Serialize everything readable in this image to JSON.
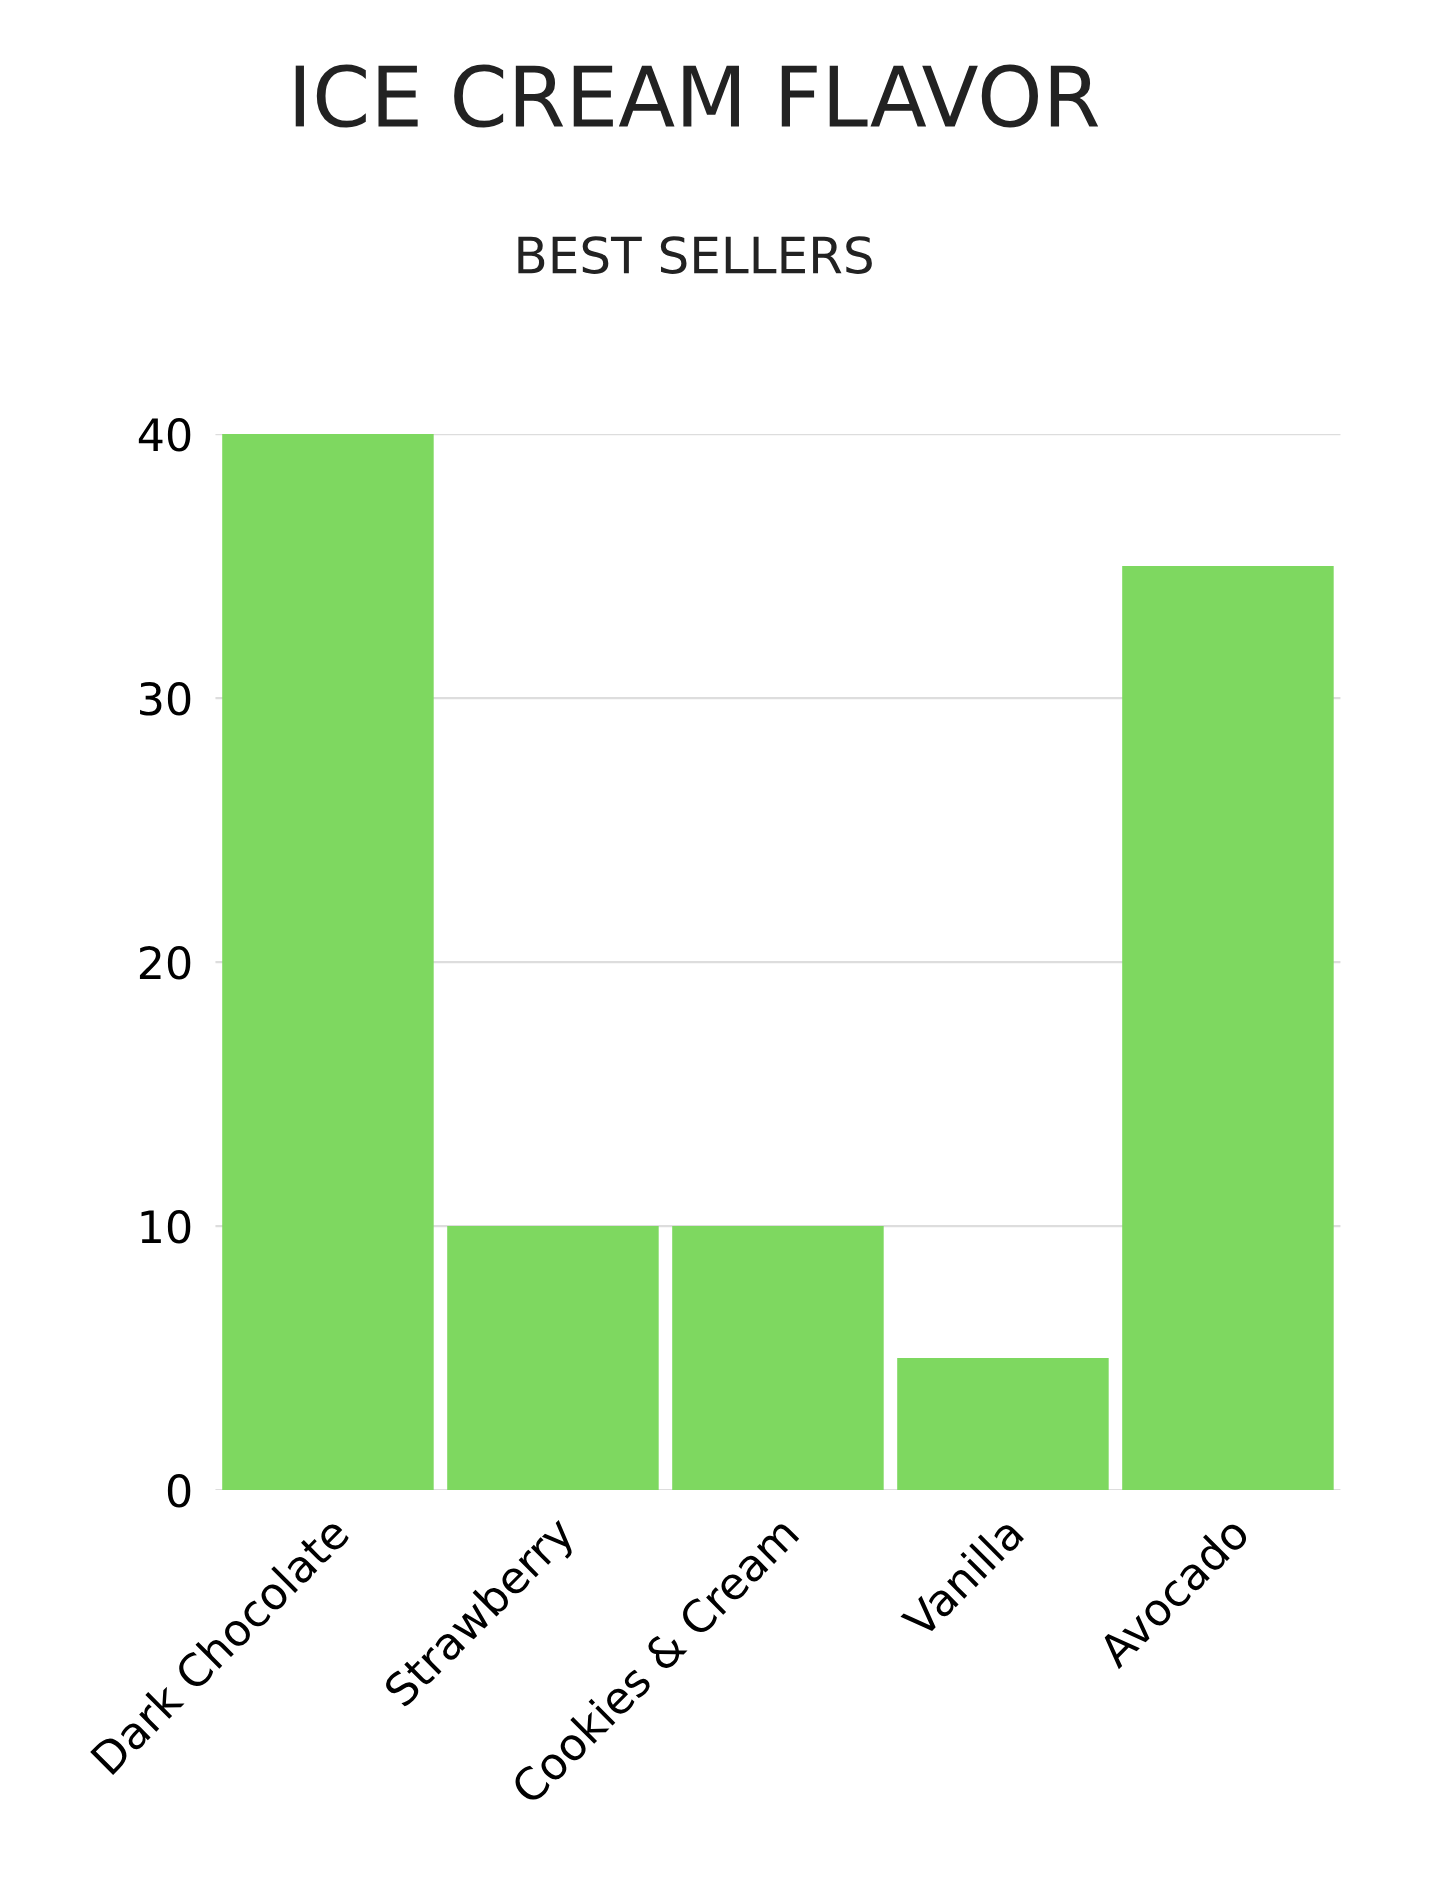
{
  "chart_data": {
    "type": "bar",
    "title": "ICE CREAM FLAVOR",
    "subtitle": "BEST SELLERS",
    "categories": [
      "Dark Chocolate",
      "Strawberry",
      "Cookies & Cream",
      "Vanilla",
      "Avocado"
    ],
    "values": [
      40,
      10,
      10,
      5,
      35
    ],
    "color": "#7ed860",
    "ylim": [
      0,
      40
    ],
    "yticks": [
      0,
      10,
      20,
      30,
      40
    ],
    "grid": "y"
  }
}
